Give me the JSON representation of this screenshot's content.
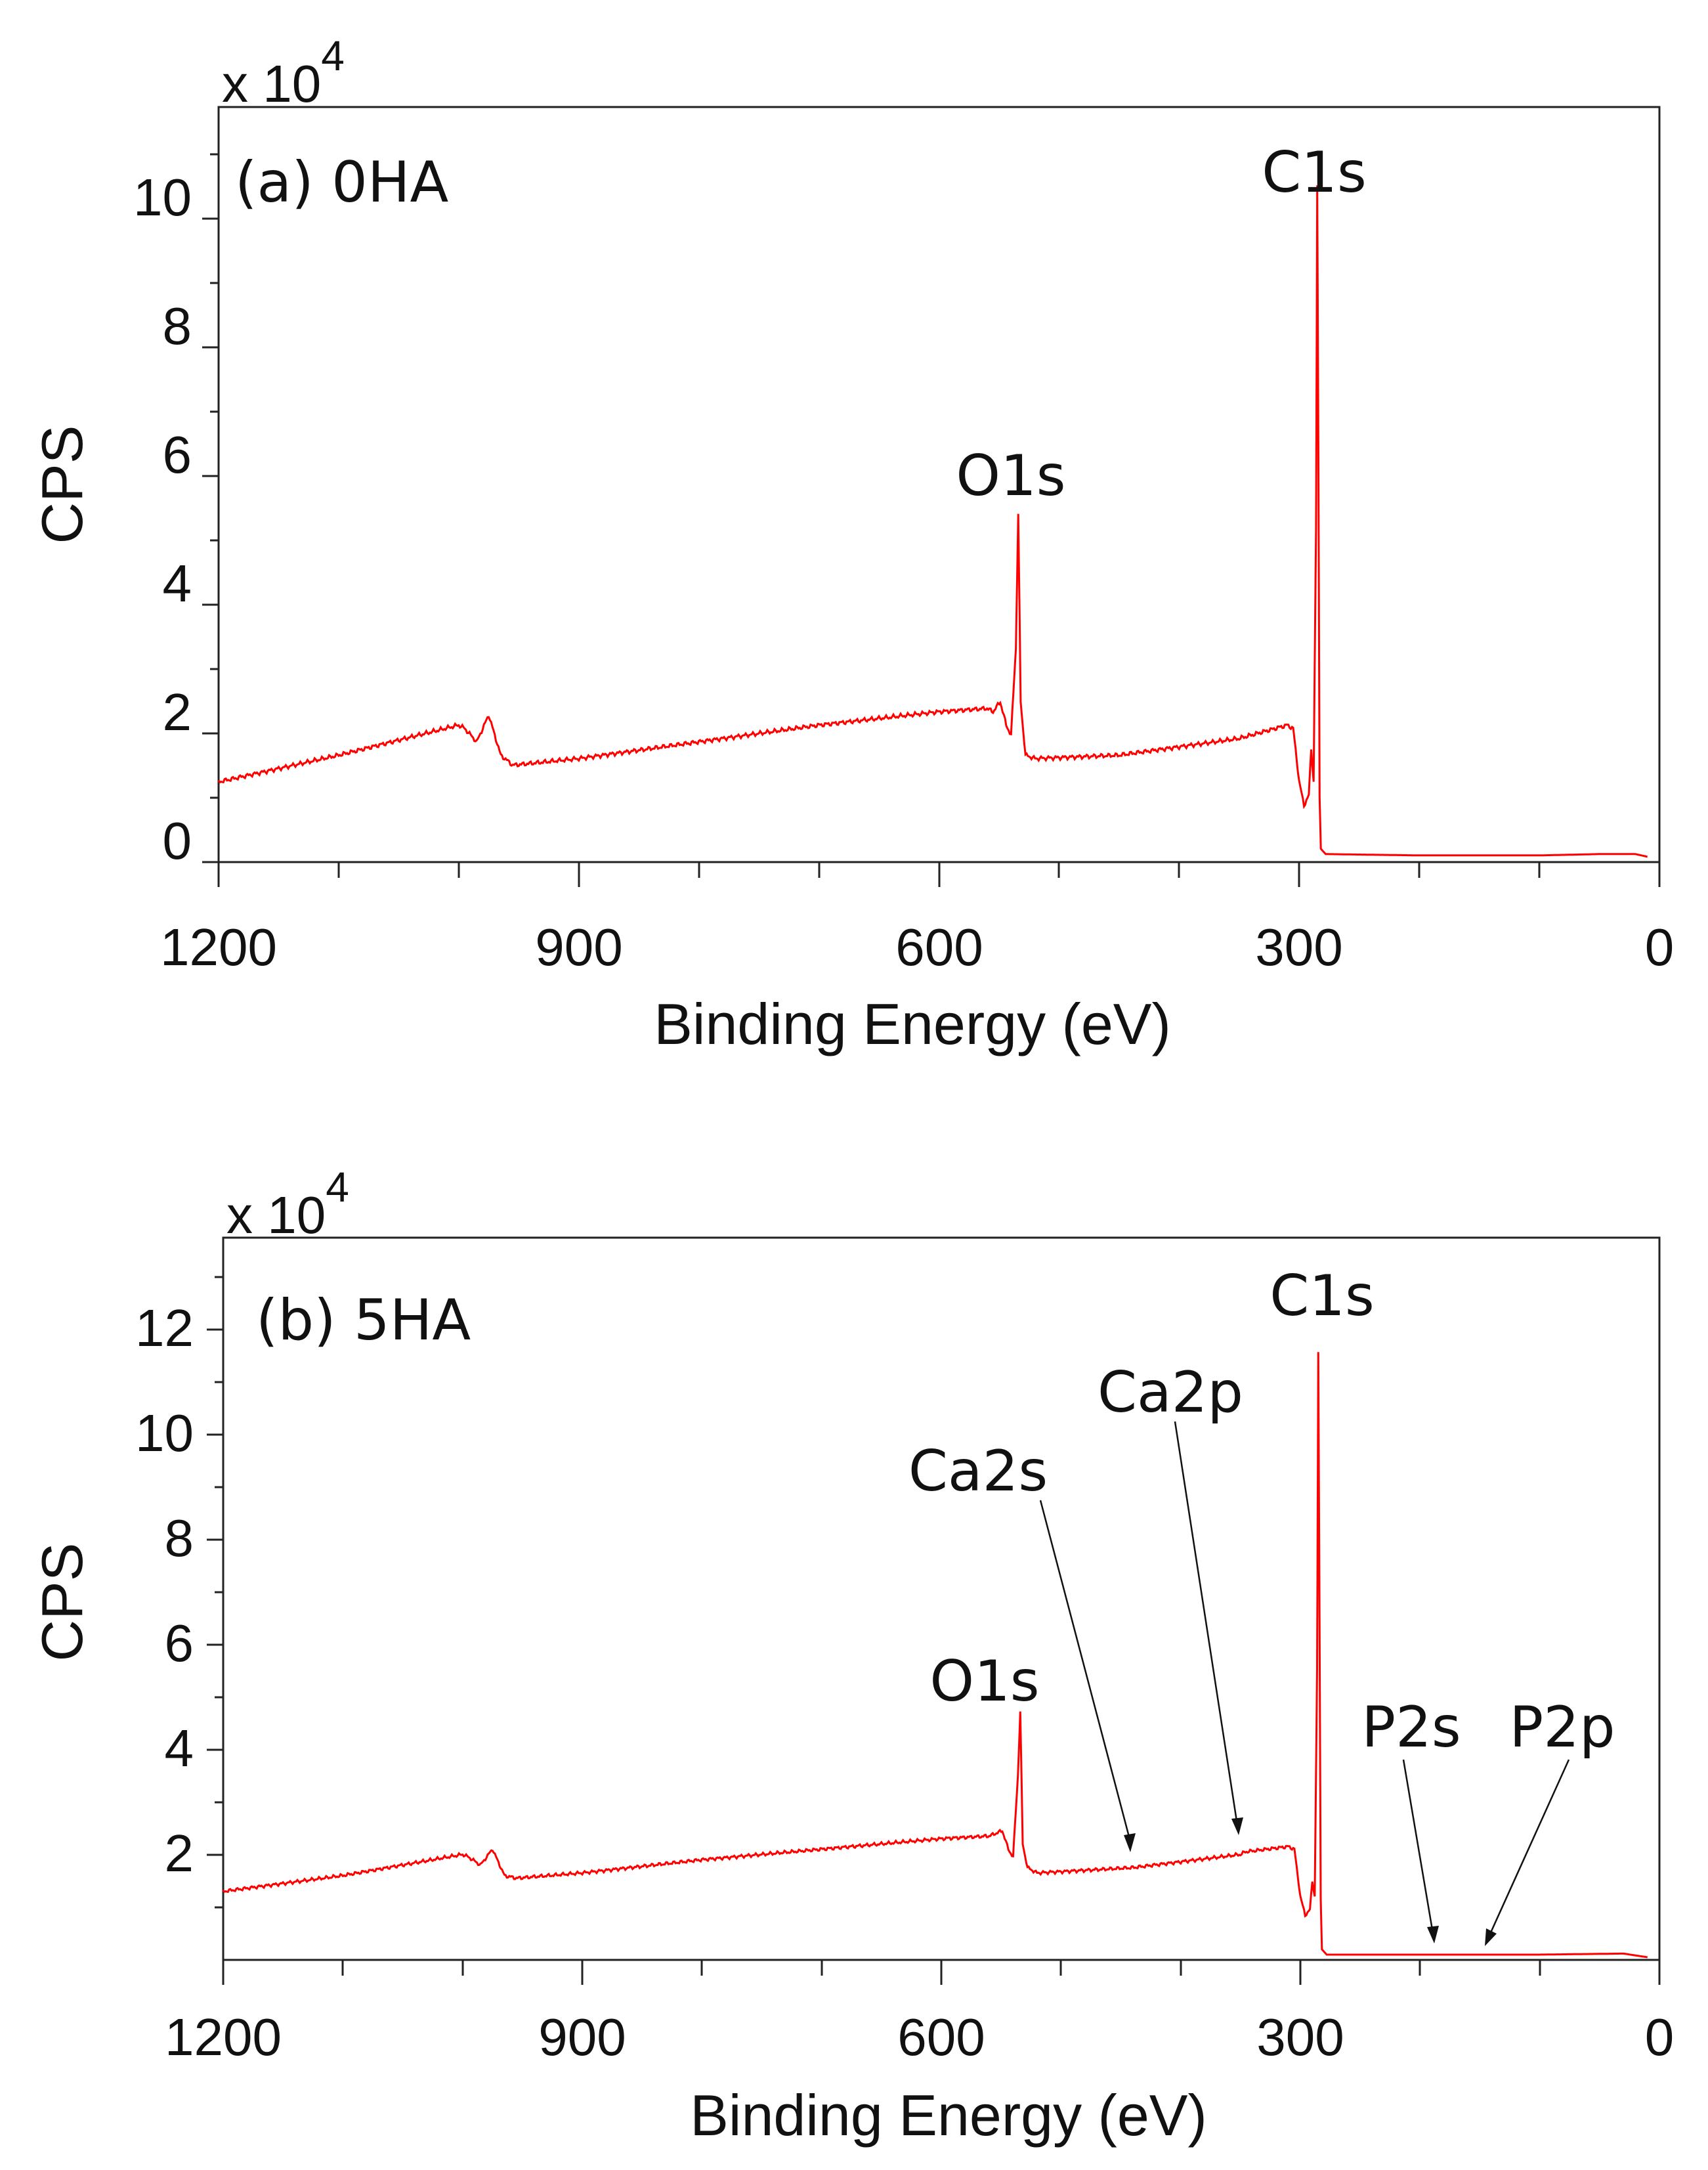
{
  "chart_data": [
    {
      "type": "line",
      "panel_label": "(a) 0HA",
      "xlabel": "Binding Energy (eV)",
      "ylabel": "CPS",
      "y_multiplier": "x 10",
      "y_exponent": "4",
      "xlim": [
        1200,
        0
      ],
      "ylim": [
        0,
        11.3
      ],
      "x_ticks": [
        "1200",
        "900",
        "600",
        "300",
        "0"
      ],
      "y_ticks": [
        "0",
        "2",
        "4",
        "6",
        "8",
        "10"
      ],
      "series": [
        {
          "name": "0HA",
          "color": "#ff0000",
          "points": [
            [
              1200,
              1.2
            ],
            [
              1100,
              1.6
            ],
            [
              1000,
              2.05
            ],
            [
              995,
              2.0
            ],
            [
              985,
              1.8
            ],
            [
              975,
              2.2
            ],
            [
              965,
              1.6
            ],
            [
              955,
              1.45
            ],
            [
              900,
              1.55
            ],
            [
              800,
              1.8
            ],
            [
              700,
              2.05
            ],
            [
              600,
              2.25
            ],
            [
              560,
              2.3
            ],
            [
              555,
              2.25
            ],
            [
              549,
              2.4
            ],
            [
              544,
              2.05
            ],
            [
              540,
              1.9
            ],
            [
              536,
              3.2
            ],
            [
              534,
              5.2
            ],
            [
              532,
              2.4
            ],
            [
              528,
              1.6
            ],
            [
              520,
              1.55
            ],
            [
              450,
              1.6
            ],
            [
              350,
              1.85
            ],
            [
              310,
              2.05
            ],
            [
              305,
              2.0
            ],
            [
              300,
              1.2
            ],
            [
              296,
              0.85
            ],
            [
              292,
              1.0
            ],
            [
              290,
              1.7
            ],
            [
              288,
              1.2
            ],
            [
              286,
              5.0
            ],
            [
              285,
              10.1
            ],
            [
              284,
              6.0
            ],
            [
              283,
              1.0
            ],
            [
              282,
              0.2
            ],
            [
              278,
              0.12
            ],
            [
              200,
              0.1
            ],
            [
              100,
              0.1
            ],
            [
              50,
              0.12
            ],
            [
              20,
              0.12
            ],
            [
              10,
              0.08
            ]
          ]
        }
      ],
      "annotations": [
        {
          "text": "C1s",
          "x": 285,
          "y": 10.1
        },
        {
          "text": "O1s",
          "x": 532,
          "y": 5.2
        }
      ]
    },
    {
      "type": "line",
      "panel_label": "(b) 5HA",
      "xlabel": "Binding Energy (eV)",
      "ylabel": "CPS",
      "y_multiplier": "x 10",
      "y_exponent": "4",
      "xlim": [
        1200,
        0
      ],
      "ylim": [
        0,
        13.7
      ],
      "x_ticks": [
        "1200",
        "900",
        "600",
        "300",
        "0"
      ],
      "y_ticks": [
        "2",
        "4",
        "6",
        "8",
        "10",
        "12"
      ],
      "series": [
        {
          "name": "5HA",
          "color": "#ff0000",
          "points": [
            [
              1200,
              1.3
            ],
            [
              1100,
              1.6
            ],
            [
              1000,
              2.0
            ],
            [
              995,
              1.95
            ],
            [
              985,
              1.8
            ],
            [
              975,
              2.1
            ],
            [
              965,
              1.6
            ],
            [
              955,
              1.55
            ],
            [
              900,
              1.65
            ],
            [
              800,
              1.9
            ],
            [
              700,
              2.1
            ],
            [
              600,
              2.3
            ],
            [
              560,
              2.35
            ],
            [
              549,
              2.45
            ],
            [
              544,
              2.1
            ],
            [
              540,
              1.95
            ],
            [
              536,
              3.5
            ],
            [
              534,
              4.7
            ],
            [
              532,
              2.2
            ],
            [
              528,
              1.75
            ],
            [
              520,
              1.65
            ],
            [
              440,
              1.75
            ],
            [
              350,
              2.0
            ],
            [
              346,
              2.05
            ],
            [
              310,
              2.15
            ],
            [
              305,
              2.1
            ],
            [
              300,
              1.2
            ],
            [
              296,
              0.85
            ],
            [
              292,
              0.95
            ],
            [
              290,
              1.5
            ],
            [
              288,
              1.2
            ],
            [
              286,
              5.5
            ],
            [
              285,
              11.5
            ],
            [
              284,
              6.5
            ],
            [
              283,
              1.2
            ],
            [
              282,
              0.2
            ],
            [
              278,
              0.1
            ],
            [
              200,
              0.1
            ],
            [
              100,
              0.1
            ],
            [
              30,
              0.12
            ],
            [
              10,
              0.05
            ]
          ]
        }
      ],
      "annotations": [
        {
          "text": "C1s",
          "x": 285,
          "y": 11.5
        },
        {
          "text": "O1s",
          "x": 532,
          "y": 4.7
        },
        {
          "text": "Ca2s",
          "x": 439,
          "y": 1.75,
          "arrow": true
        },
        {
          "text": "Ca2p",
          "x": 347,
          "y": 2.05,
          "arrow": true
        },
        {
          "text": "P2s",
          "x": 190,
          "y": 0.1,
          "arrow": true
        },
        {
          "text": "P2p",
          "x": 150,
          "y": 0.1,
          "arrow": true
        }
      ]
    }
  ]
}
